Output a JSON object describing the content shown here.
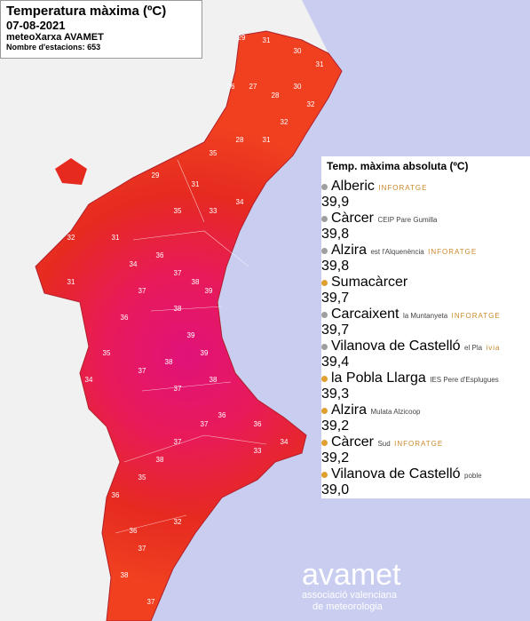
{
  "header": {
    "title": "Temperatura màxima (ºC)",
    "date": "07-08-2021",
    "network": "meteoXarxa AVAMET",
    "stations": "Nombre d'estacions: 653"
  },
  "table": {
    "title": "Temp. màxima absoluta (ºC)",
    "rows": [
      {
        "name": "Alberic",
        "detail": "",
        "source": "INFORATGE",
        "value": "39,9",
        "dot": "#9e9e9e"
      },
      {
        "name": "Càrcer",
        "detail": "CEIP Pare Gumilla",
        "source": "",
        "value": "39,8",
        "dot": "#9e9e9e"
      },
      {
        "name": "Alzira",
        "detail": "est l'Alquenència",
        "source": "INFORATGE",
        "value": "39,8",
        "dot": "#9e9e9e"
      },
      {
        "name": "Sumacàrcer",
        "detail": "",
        "source": "",
        "value": "39,7",
        "dot": "#e0a030"
      },
      {
        "name": "Carcaixent",
        "detail": "la Muntanyeta",
        "source": "INFORATGE",
        "value": "39,7",
        "dot": "#9e9e9e"
      },
      {
        "name": "Vilanova de Castelló",
        "detail": "el Pla",
        "source": "ivia",
        "value": "39,4",
        "dot": "#9e9e9e"
      },
      {
        "name": "la Pobla Llarga",
        "detail": "IES Pere d'Esplugues",
        "source": "",
        "value": "39,3",
        "dot": "#e0a030"
      },
      {
        "name": "Alzira",
        "detail": "Mulata Alzicoop",
        "source": "",
        "value": "39,2",
        "dot": "#e0a030"
      },
      {
        "name": "Càrcer",
        "detail": "Sud",
        "source": "INFORATGE",
        "value": "39,2",
        "dot": "#e0a030"
      },
      {
        "name": "Vilanova de Castelló",
        "detail": "poble",
        "source": "",
        "value": "39,0",
        "dot": "#e0a030"
      }
    ]
  },
  "map_labels": [
    "29",
    "31",
    "30",
    "31",
    "26",
    "27",
    "28",
    "30",
    "32",
    "32",
    "31",
    "28",
    "35",
    "31",
    "29",
    "34",
    "33",
    "35",
    "31",
    "32",
    "34",
    "36",
    "37",
    "38",
    "39",
    "37",
    "38",
    "36",
    "39",
    "39",
    "38",
    "37",
    "38",
    "37",
    "35",
    "34",
    "31",
    "36",
    "37",
    "36",
    "37",
    "38",
    "35",
    "36",
    "33",
    "34",
    "36",
    "32",
    "37",
    "38",
    "37"
  ],
  "logo": {
    "name": "avamet",
    "line1": "associació valenciana",
    "line2": "de meteorologia"
  }
}
